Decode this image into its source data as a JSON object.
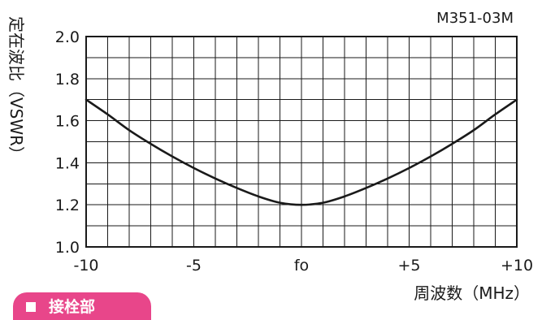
{
  "model_label": "M351-03M",
  "section_tab": {
    "label": "接栓部"
  },
  "colors": {
    "ink": "#1a1a1a",
    "accent": "#e8468a"
  },
  "chart_data": {
    "type": "line",
    "title": "",
    "xlabel": "周波数（MHz）",
    "ylabel": "定在波比（VSWR）",
    "xlim": [
      -10,
      10
    ],
    "ylim": [
      1.0,
      2.0
    ],
    "x_ticks": [
      -10,
      -5,
      0,
      5,
      10
    ],
    "x_tick_labels": [
      "-10",
      "-5",
      "fo",
      "+5",
      "+10"
    ],
    "y_ticks": [
      1.0,
      1.2,
      1.4,
      1.6,
      1.8,
      2.0
    ],
    "y_tick_labels": [
      "1.0",
      "1.2",
      "1.4",
      "1.6",
      "1.8",
      "2.0"
    ],
    "grid": true,
    "x_minor_divisions": 20,
    "y_minor_divisions": 10,
    "series": [
      {
        "x": [
          -10,
          -9,
          -8,
          -7,
          -6,
          -5,
          -4,
          -3,
          -2,
          -1,
          0,
          1,
          2,
          3,
          4,
          5,
          6,
          7,
          8,
          9,
          10
        ],
        "values": [
          1.7,
          1.63,
          1.555,
          1.49,
          1.43,
          1.375,
          1.325,
          1.28,
          1.24,
          1.21,
          1.2,
          1.21,
          1.24,
          1.28,
          1.325,
          1.375,
          1.43,
          1.49,
          1.555,
          1.63,
          1.7
        ]
      }
    ]
  }
}
